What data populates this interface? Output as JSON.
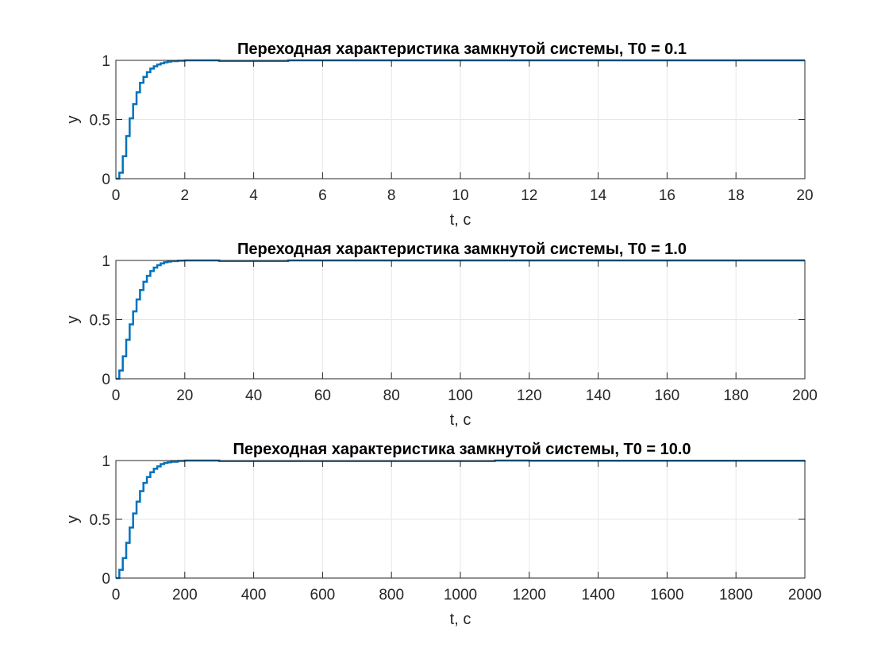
{
  "chart_data": [
    {
      "type": "line",
      "title": "Переходная характеристика замкнутой системы, T0 = 0.1",
      "xlabel": "t, c",
      "ylabel": "y",
      "xlim": [
        0,
        20
      ],
      "ylim": [
        0,
        1
      ],
      "xticks": [
        "0",
        "2",
        "4",
        "6",
        "8",
        "10",
        "12",
        "14",
        "16",
        "18",
        "20"
      ],
      "yticks": [
        "0",
        "0.5",
        "1"
      ],
      "grid": true,
      "line_color": "#0072BD",
      "series": [
        {
          "x": [
            0,
            0.1,
            0.2,
            0.3,
            0.4,
            0.5,
            0.6,
            0.7,
            0.8,
            0.9,
            1.0,
            1.1,
            1.2,
            1.3,
            1.4,
            1.5,
            1.6,
            1.8,
            2.0,
            2.5,
            3.0,
            4.0,
            5.0,
            20
          ],
          "y": [
            0,
            0.05,
            0.19,
            0.36,
            0.51,
            0.63,
            0.73,
            0.81,
            0.86,
            0.9,
            0.93,
            0.95,
            0.965,
            0.975,
            0.983,
            0.989,
            0.993,
            0.997,
            1.0,
            1.0,
            0.995,
            0.995,
            1.0,
            1.0
          ]
        }
      ]
    },
    {
      "type": "line",
      "title": "Переходная характеристика замкнутой системы, T0 = 1.0",
      "xlabel": "t, c",
      "ylabel": "y",
      "xlim": [
        0,
        200
      ],
      "ylim": [
        0,
        1
      ],
      "xticks": [
        "0",
        "20",
        "40",
        "60",
        "80",
        "100",
        "120",
        "140",
        "160",
        "180",
        "200"
      ],
      "yticks": [
        "0",
        "0.5",
        "1"
      ],
      "grid": true,
      "line_color": "#0072BD",
      "series": [
        {
          "x": [
            0,
            1,
            2,
            3,
            4,
            5,
            6,
            7,
            8,
            9,
            10,
            11,
            12,
            13,
            14,
            15,
            16,
            18,
            20,
            25,
            30,
            40,
            50,
            200
          ],
          "y": [
            0,
            0.07,
            0.19,
            0.33,
            0.46,
            0.57,
            0.67,
            0.75,
            0.82,
            0.87,
            0.91,
            0.94,
            0.96,
            0.975,
            0.985,
            0.99,
            0.994,
            0.998,
            1.0,
            1.0,
            0.995,
            0.995,
            1.0,
            1.0
          ]
        }
      ]
    },
    {
      "type": "line",
      "title": "Переходная характеристика замкнутой системы, T0 = 10.0",
      "xlabel": "t, c",
      "ylabel": "y",
      "xlim": [
        0,
        2000
      ],
      "ylim": [
        0,
        1
      ],
      "xticks": [
        "0",
        "200",
        "400",
        "600",
        "800",
        "1000",
        "1200",
        "1400",
        "1600",
        "1800",
        "2000"
      ],
      "yticks": [
        "0",
        "0.5",
        "1"
      ],
      "grid": true,
      "line_color": "#0072BD",
      "series": [
        {
          "x": [
            0,
            10,
            20,
            30,
            40,
            50,
            60,
            70,
            80,
            90,
            100,
            110,
            120,
            130,
            140,
            150,
            160,
            180,
            200,
            250,
            300,
            400,
            1100,
            1200,
            2000
          ],
          "y": [
            0,
            0.07,
            0.17,
            0.3,
            0.43,
            0.55,
            0.65,
            0.74,
            0.81,
            0.86,
            0.9,
            0.93,
            0.95,
            0.97,
            0.98,
            0.985,
            0.99,
            0.997,
            1.0,
            1.0,
            0.995,
            0.995,
            1.0,
            0.998,
            1.0
          ]
        }
      ]
    }
  ]
}
